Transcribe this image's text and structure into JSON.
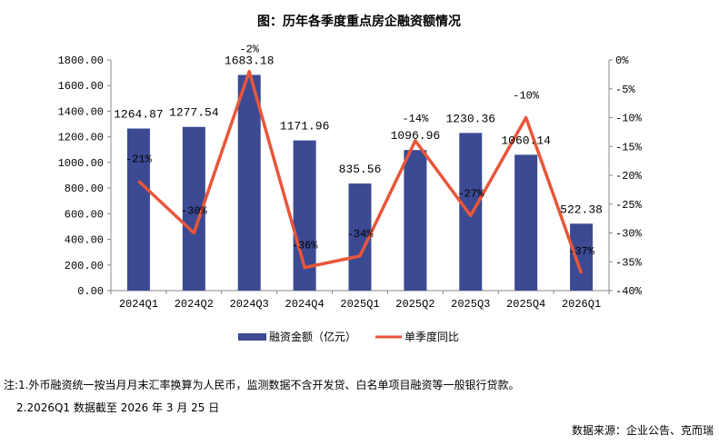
{
  "chart_data": {
    "type": "bar+line",
    "title": "图：历年各季度重点房企融资额情况",
    "categories": [
      "2024Q1",
      "2024Q2",
      "2024Q3",
      "2024Q4",
      "2025Q1",
      "2025Q2",
      "2025Q3",
      "2025Q4",
      "2026Q1"
    ],
    "series": [
      {
        "name": "融资金额（亿元）",
        "type": "bar",
        "axis": "left",
        "color": "#3B4A92",
        "values": [
          1264.87,
          1277.54,
          1683.18,
          1171.96,
          835.56,
          1096.96,
          1230.36,
          1060.14,
          522.38
        ],
        "labels": [
          "1264.87",
          "1277.54",
          "1683.18",
          "1171.96",
          "835.56",
          "1096.96",
          "1230.36",
          "1060.14",
          "522.38"
        ]
      },
      {
        "name": "单季度同比",
        "type": "line",
        "axis": "right",
        "color": "#E8563A",
        "values": [
          -21,
          -30,
          -2,
          -36,
          -34,
          -14,
          -27,
          -10,
          -37
        ],
        "labels": [
          "-21%",
          "-30%",
          "-2%",
          "-36%",
          "-34%",
          "-14%",
          "-27%",
          "-10%",
          "-37%"
        ]
      }
    ],
    "left_axis": {
      "min": 0,
      "max": 1800,
      "ticks": [
        "0.00",
        "200.00",
        "400.00",
        "600.00",
        "800.00",
        "1000.00",
        "1200.00",
        "1400.00",
        "1600.00",
        "1800.00"
      ]
    },
    "right_axis": {
      "min": -40,
      "max": 0,
      "ticks": [
        "-40%",
        "-35%",
        "-30%",
        "-25%",
        "-20%",
        "-15%",
        "-10%",
        "-5%",
        "0%"
      ]
    },
    "grid": false,
    "legend_position": "bottom"
  },
  "notes": {
    "line1": "注:1.外币融资统一按当月月末汇率换算为人民币，监测数据不含开发贷、白名单项目融资等一般银行贷款。",
    "line2": "2.2026Q1 数据截至 2026 年 3 月 25 日",
    "source": "数据来源：企业公告、克而瑞"
  }
}
